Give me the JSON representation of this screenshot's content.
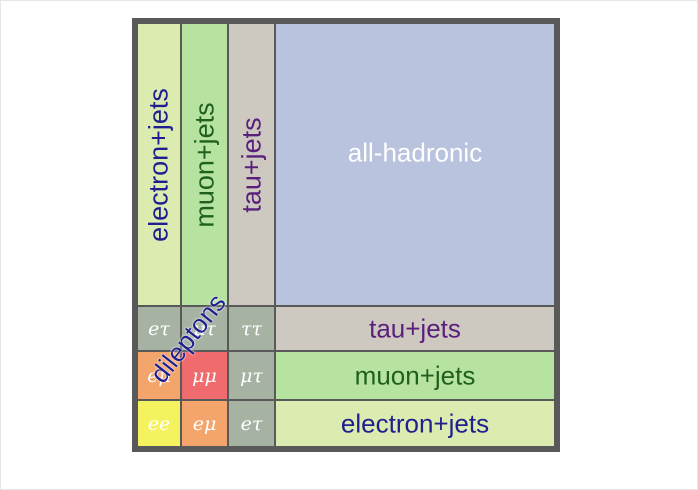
{
  "diagram": {
    "columns": {
      "electron_jets": "electron+jets",
      "muon_jets": "muon+jets",
      "tau_jets": "tau+jets",
      "all_hadronic": "all-hadronic"
    },
    "rows": {
      "tau_jets": "tau+jets",
      "muon_jets": "muon+jets",
      "electron_jets": "electron+jets"
    },
    "pairs": {
      "e_tau_top": "eτ",
      "mu_tau_top": "μτ",
      "tau_tau": "ττ",
      "e_mu_mid": "eμ",
      "mu_mu": "μμ",
      "mu_tau_mid": "μτ",
      "e_e": "ee",
      "e_mu_bottom": "eμ",
      "e_tau_bottom": "eτ"
    },
    "dileptons_label": "dileptons",
    "colors": {
      "electron": "#dcecb0",
      "muon": "#b7e3a0",
      "tau": "#cdc8c0",
      "all_hadronic": "#b9c3de",
      "lepton_pair": "#a6b3a3",
      "e_mu": "#f3a56c",
      "mu_mu": "#f06b6e",
      "e_e": "#f4f25f",
      "electron_text": "#1f1f8f",
      "muon_text": "#1f5f1f",
      "tau_text": "#5a1f7a"
    }
  }
}
